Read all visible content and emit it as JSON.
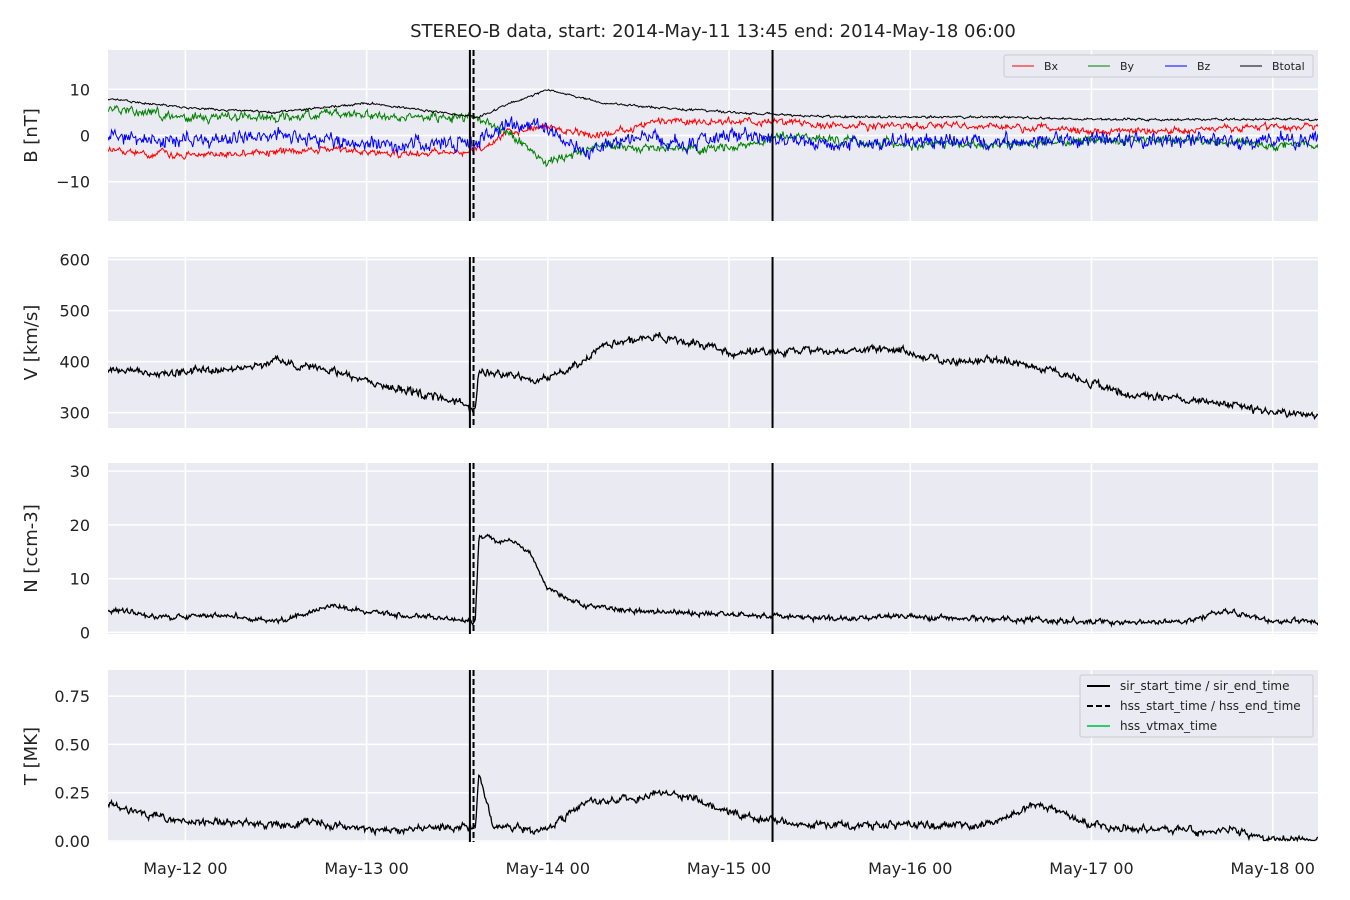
{
  "figure": {
    "title": "STEREO-B data, start: 2014-May-11 13:45  end: 2014-May-18 06:00"
  },
  "colors": {
    "panel_bg": "#eaeaf2",
    "grid": "#ffffff",
    "Bx": "#ff0000",
    "By": "#008000",
    "Bz": "#0000ff",
    "Btotal": "#000000",
    "series": "#000000",
    "hss_vtmax": "#2ecc71"
  },
  "chart_data": [
    {
      "id": "B",
      "type": "line",
      "ylabel": "B [nT]",
      "ylim": [
        -18.5,
        18.5
      ],
      "yticks": [
        -10,
        0,
        10
      ],
      "yticklabels": [
        "−10",
        "0",
        "10"
      ],
      "legend": {
        "placement": "upper-right",
        "entries": [
          "Bx",
          "By",
          "Bz",
          "Btotal"
        ]
      },
      "series": [
        {
          "name": "Bx",
          "color": "#ff0000",
          "day_offsets": [
            -0.44,
            -0.2,
            0.3,
            0.8,
            1.2,
            1.62,
            1.8,
            2.0,
            2.3,
            2.6,
            3.0,
            3.3,
            3.6,
            4.0,
            4.5,
            5.0,
            5.5,
            6.0,
            6.25
          ],
          "values": [
            -3,
            -4,
            -4,
            -3,
            -4,
            -3,
            1,
            2,
            0,
            3,
            3,
            3,
            2,
            2,
            2,
            1,
            1,
            2,
            2
          ]
        },
        {
          "name": "By",
          "color": "#008000",
          "day_offsets": [
            -0.44,
            0.0,
            0.5,
            0.8,
            1.2,
            1.62,
            1.8,
            2.0,
            2.3,
            2.6,
            3.0,
            3.3,
            3.6,
            4.0,
            4.5,
            5.0,
            5.5,
            6.0,
            6.25
          ],
          "values": [
            6,
            4,
            4,
            5,
            4,
            4,
            0,
            -6,
            -2,
            -3,
            -3,
            0,
            -1,
            -2,
            -2,
            -1,
            -1,
            -2,
            -2
          ]
        },
        {
          "name": "Bz",
          "color": "#0000ff",
          "day_offsets": [
            -0.44,
            0.0,
            0.5,
            0.8,
            1.2,
            1.62,
            1.8,
            2.0,
            2.2,
            2.5,
            2.8,
            3.0,
            3.3,
            3.6,
            4.0,
            4.5,
            5.0,
            5.5,
            6.0,
            6.25
          ],
          "values": [
            0,
            -1,
            0,
            -1,
            -2,
            -1,
            2,
            2,
            -4,
            0,
            -2,
            0,
            -1,
            -2,
            -1,
            -1,
            -1,
            -1,
            -1,
            -1
          ]
        },
        {
          "name": "Btotal",
          "color": "#000000",
          "day_offsets": [
            -0.44,
            0.0,
            0.5,
            1.0,
            1.62,
            1.8,
            2.0,
            2.3,
            2.6,
            3.0,
            3.3,
            3.6,
            4.0,
            4.5,
            5.0,
            5.5,
            6.0,
            6.25
          ],
          "values": [
            8,
            6,
            5,
            7,
            4,
            7,
            10,
            7,
            6,
            5,
            4.5,
            4,
            4,
            4,
            3.5,
            3.5,
            3.5,
            3.5
          ]
        }
      ]
    },
    {
      "id": "V",
      "type": "line",
      "ylabel": "V [km/s]",
      "ylim": [
        270,
        605
      ],
      "yticks": [
        300,
        400,
        500,
        600
      ],
      "yticklabels": [
        "300",
        "400",
        "500",
        "600"
      ],
      "series": [
        {
          "name": "V",
          "color": "#000000",
          "day_offsets": [
            -0.44,
            -0.2,
            0.0,
            0.3,
            0.5,
            0.8,
            1.0,
            1.2,
            1.5,
            1.6,
            1.62,
            1.8,
            1.9,
            2.1,
            2.3,
            2.6,
            2.9,
            3.0,
            3.2,
            3.6,
            3.9,
            4.2,
            4.5,
            4.8,
            5.2,
            5.6,
            6.0,
            6.25
          ],
          "values": [
            385,
            380,
            380,
            385,
            400,
            385,
            360,
            345,
            320,
            305,
            380,
            375,
            360,
            380,
            430,
            450,
            430,
            415,
            420,
            420,
            425,
            400,
            405,
            380,
            335,
            325,
            300,
            295
          ]
        }
      ]
    },
    {
      "id": "N",
      "type": "line",
      "ylabel": "N [ccm-3]",
      "ylim": [
        -0.3,
        31.5
      ],
      "yticks": [
        0,
        10,
        20,
        30
      ],
      "yticklabels": [
        "0",
        "10",
        "20",
        "30"
      ],
      "series": [
        {
          "name": "N",
          "color": "#000000",
          "day_offsets": [
            -0.44,
            -0.2,
            0.0,
            0.3,
            0.5,
            0.8,
            1.0,
            1.3,
            1.6,
            1.62,
            1.8,
            1.9,
            2.0,
            2.2,
            2.5,
            3.0,
            3.3,
            3.6,
            4.0,
            4.5,
            5.0,
            5.5,
            5.75,
            6.0,
            6.25
          ],
          "values": [
            4.5,
            3,
            3,
            3,
            2,
            5,
            4,
            3,
            2,
            18,
            17,
            15,
            8,
            5,
            4,
            3.5,
            3,
            2.5,
            3,
            2.5,
            2,
            2,
            4,
            2,
            2
          ]
        }
      ]
    },
    {
      "id": "T",
      "type": "line",
      "ylabel": "T [MK]",
      "ylim": [
        -0.005,
        0.885
      ],
      "yticks": [
        0.0,
        0.25,
        0.5,
        0.75
      ],
      "yticklabels": [
        "0.00",
        "0.25",
        "0.50",
        "0.75"
      ],
      "legend": {
        "placement": "upper-right",
        "entries": [
          "sir_start_time / sir_end_time",
          "hss_start_time / hss_end_time",
          "hss_vtmax_time"
        ]
      },
      "series": [
        {
          "name": "T",
          "color": "#000000",
          "day_offsets": [
            -0.44,
            -0.3,
            0.0,
            0.3,
            0.5,
            0.7,
            1.0,
            1.2,
            1.5,
            1.6,
            1.62,
            1.7,
            1.9,
            2.0,
            2.2,
            2.5,
            2.6,
            2.8,
            3.0,
            3.3,
            3.6,
            4.0,
            4.3,
            4.5,
            4.7,
            5.0,
            5.3,
            5.6,
            5.7,
            5.75,
            6.0,
            6.25
          ],
          "values": [
            0.2,
            0.15,
            0.1,
            0.1,
            0.08,
            0.1,
            0.06,
            0.06,
            0.08,
            0.07,
            0.35,
            0.08,
            0.06,
            0.06,
            0.2,
            0.22,
            0.25,
            0.22,
            0.15,
            0.1,
            0.08,
            0.08,
            0.08,
            0.1,
            0.2,
            0.08,
            0.06,
            0.05,
            0.05,
            0.06,
            0.01,
            0.01
          ]
        }
      ]
    }
  ],
  "x_axis": {
    "tick_day_offsets": [
      0,
      1,
      2,
      3,
      4,
      5,
      6
    ],
    "ticklabels": [
      "May-12 00",
      "May-13 00",
      "May-14 00",
      "May-15 00",
      "May-16 00",
      "May-17 00",
      "May-18 00"
    ],
    "xlim_day_offsets": [
      -0.4271,
      6.25
    ]
  },
  "event_lines": [
    {
      "kind": "sir_start",
      "style": "solid",
      "day_offset": 1.57
    },
    {
      "kind": "hss_start",
      "style": "dashed",
      "day_offset": 1.59
    },
    {
      "kind": "sir_end",
      "style": "solid",
      "day_offset": 3.24
    }
  ]
}
